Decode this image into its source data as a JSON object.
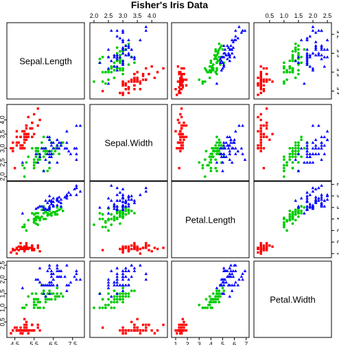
{
  "chart_data": {
    "type": "scatter",
    "subtype": "scatterplot-matrix",
    "title": "Fisher's Iris Data",
    "variables": [
      "Sepal.Length",
      "Sepal.Width",
      "Petal.Length",
      "Petal.Width"
    ],
    "ranges": {
      "Sepal.Length": [
        4.3,
        7.9
      ],
      "Sepal.Width": [
        2.0,
        4.4
      ],
      "Petal.Length": [
        1.0,
        6.9
      ],
      "Petal.Width": [
        0.1,
        2.5
      ]
    },
    "ticks": {
      "Sepal.Length": [
        4.5,
        5.5,
        6.5,
        7.5
      ],
      "Sepal.Width": [
        2.0,
        2.5,
        3.0,
        3.5,
        4.0
      ],
      "Petal.Length": [
        1,
        2,
        3,
        4,
        5,
        6,
        7
      ],
      "Petal.Width": [
        0.5,
        1.0,
        1.5,
        2.0,
        2.5
      ]
    },
    "tick_labels": {
      "Sepal.Length": [
        "4.5",
        "5.5",
        "6.5",
        "7.5"
      ],
      "Sepal.Width": [
        "2.0",
        "2.5",
        "3.0",
        "3.5",
        "4.0"
      ],
      "Petal.Length": [
        "1",
        "2",
        "3",
        "4",
        "5",
        "6",
        "7"
      ],
      "Petal.Width": [
        "0.5",
        "1.0",
        "1.5",
        "2.0",
        "2.5"
      ]
    },
    "axis_sides": {
      "top": [
        "",
        "Sepal.Width",
        "",
        "Petal.Width"
      ],
      "bottom": [
        "Sepal.Length",
        "",
        "Petal.Length",
        ""
      ],
      "left": [
        "",
        "Sepal.Width",
        "",
        "Petal.Width"
      ],
      "right": [
        "Sepal.Length",
        "",
        "Petal.Length",
        ""
      ]
    },
    "grid": false,
    "series": [
      {
        "color": "#ff0000",
        "marker": "square",
        "points": [
          [
            5.1,
            3.5,
            1.4,
            0.2
          ],
          [
            4.9,
            3.0,
            1.4,
            0.2
          ],
          [
            4.7,
            3.2,
            1.3,
            0.2
          ],
          [
            4.6,
            3.1,
            1.5,
            0.2
          ],
          [
            5.0,
            3.6,
            1.4,
            0.2
          ],
          [
            5.4,
            3.9,
            1.7,
            0.4
          ],
          [
            4.6,
            3.4,
            1.4,
            0.3
          ],
          [
            5.0,
            3.4,
            1.5,
            0.2
          ],
          [
            4.4,
            2.9,
            1.4,
            0.2
          ],
          [
            4.9,
            3.1,
            1.5,
            0.1
          ],
          [
            5.4,
            3.7,
            1.5,
            0.2
          ],
          [
            4.8,
            3.4,
            1.6,
            0.2
          ],
          [
            4.8,
            3.0,
            1.4,
            0.1
          ],
          [
            4.3,
            3.0,
            1.1,
            0.1
          ],
          [
            5.8,
            4.0,
            1.2,
            0.2
          ],
          [
            5.7,
            4.4,
            1.5,
            0.4
          ],
          [
            5.4,
            3.9,
            1.3,
            0.4
          ],
          [
            5.1,
            3.5,
            1.4,
            0.3
          ],
          [
            5.7,
            3.8,
            1.7,
            0.3
          ],
          [
            5.1,
            3.8,
            1.5,
            0.3
          ],
          [
            5.4,
            3.4,
            1.7,
            0.2
          ],
          [
            5.1,
            3.7,
            1.5,
            0.4
          ],
          [
            4.6,
            3.6,
            1.0,
            0.2
          ],
          [
            5.1,
            3.3,
            1.7,
            0.5
          ],
          [
            4.8,
            3.4,
            1.9,
            0.2
          ],
          [
            5.0,
            3.0,
            1.6,
            0.2
          ],
          [
            5.0,
            3.4,
            1.6,
            0.4
          ],
          [
            5.2,
            3.5,
            1.5,
            0.2
          ],
          [
            5.2,
            3.4,
            1.4,
            0.2
          ],
          [
            4.7,
            3.2,
            1.6,
            0.2
          ],
          [
            4.8,
            3.1,
            1.6,
            0.2
          ],
          [
            5.4,
            3.4,
            1.5,
            0.4
          ],
          [
            5.2,
            4.1,
            1.5,
            0.1
          ],
          [
            5.5,
            4.2,
            1.4,
            0.2
          ],
          [
            4.9,
            3.1,
            1.5,
            0.2
          ],
          [
            5.0,
            3.2,
            1.2,
            0.2
          ],
          [
            5.5,
            3.5,
            1.3,
            0.2
          ],
          [
            4.9,
            3.6,
            1.4,
            0.1
          ],
          [
            4.4,
            3.0,
            1.3,
            0.2
          ],
          [
            5.1,
            3.4,
            1.5,
            0.2
          ],
          [
            5.0,
            3.5,
            1.3,
            0.3
          ],
          [
            4.5,
            2.3,
            1.3,
            0.3
          ],
          [
            4.4,
            3.2,
            1.3,
            0.2
          ],
          [
            5.0,
            3.5,
            1.6,
            0.6
          ],
          [
            5.1,
            3.8,
            1.9,
            0.4
          ],
          [
            4.8,
            3.0,
            1.4,
            0.3
          ],
          [
            5.1,
            3.8,
            1.6,
            0.2
          ],
          [
            4.6,
            3.2,
            1.4,
            0.2
          ],
          [
            5.3,
            3.7,
            1.5,
            0.2
          ],
          [
            5.0,
            3.3,
            1.4,
            0.2
          ]
        ]
      },
      {
        "color": "#00cc00",
        "marker": "circle",
        "points": [
          [
            7.0,
            3.2,
            4.7,
            1.4
          ],
          [
            6.4,
            3.2,
            4.5,
            1.5
          ],
          [
            6.9,
            3.1,
            4.9,
            1.5
          ],
          [
            5.5,
            2.3,
            4.0,
            1.3
          ],
          [
            6.5,
            2.8,
            4.6,
            1.5
          ],
          [
            5.7,
            2.8,
            4.5,
            1.3
          ],
          [
            6.3,
            3.3,
            4.7,
            1.6
          ],
          [
            4.9,
            2.4,
            3.3,
            1.0
          ],
          [
            6.6,
            2.9,
            4.6,
            1.3
          ],
          [
            5.2,
            2.7,
            3.9,
            1.4
          ],
          [
            5.0,
            2.0,
            3.5,
            1.0
          ],
          [
            5.9,
            3.0,
            4.2,
            1.5
          ],
          [
            6.0,
            2.2,
            4.0,
            1.0
          ],
          [
            6.1,
            2.9,
            4.7,
            1.4
          ],
          [
            5.6,
            2.9,
            3.6,
            1.3
          ],
          [
            6.7,
            3.1,
            4.4,
            1.4
          ],
          [
            5.6,
            3.0,
            4.5,
            1.5
          ],
          [
            5.8,
            2.7,
            4.1,
            1.0
          ],
          [
            6.2,
            2.2,
            4.5,
            1.5
          ],
          [
            5.6,
            2.5,
            3.9,
            1.1
          ],
          [
            5.9,
            3.2,
            4.8,
            1.8
          ],
          [
            6.1,
            2.8,
            4.0,
            1.3
          ],
          [
            6.3,
            2.5,
            4.9,
            1.5
          ],
          [
            6.1,
            2.8,
            4.7,
            1.2
          ],
          [
            6.4,
            2.9,
            4.3,
            1.3
          ],
          [
            6.6,
            3.0,
            4.4,
            1.4
          ],
          [
            6.8,
            2.8,
            4.8,
            1.4
          ],
          [
            6.7,
            3.0,
            5.0,
            1.7
          ],
          [
            6.0,
            2.9,
            4.5,
            1.5
          ],
          [
            5.7,
            2.6,
            3.5,
            1.0
          ],
          [
            5.5,
            2.4,
            3.8,
            1.1
          ],
          [
            5.5,
            2.4,
            3.7,
            1.0
          ],
          [
            5.8,
            2.7,
            3.9,
            1.2
          ],
          [
            6.0,
            2.7,
            5.1,
            1.6
          ],
          [
            5.4,
            3.0,
            4.5,
            1.5
          ],
          [
            6.0,
            3.4,
            4.5,
            1.6
          ],
          [
            6.7,
            3.1,
            4.7,
            1.5
          ],
          [
            6.3,
            2.3,
            4.4,
            1.3
          ],
          [
            5.6,
            3.0,
            4.1,
            1.3
          ],
          [
            5.5,
            2.5,
            4.0,
            1.3
          ],
          [
            5.5,
            2.6,
            4.4,
            1.2
          ],
          [
            6.1,
            3.0,
            4.6,
            1.4
          ],
          [
            5.8,
            2.6,
            4.0,
            1.2
          ],
          [
            5.0,
            2.3,
            3.3,
            1.0
          ],
          [
            5.6,
            2.7,
            4.2,
            1.3
          ],
          [
            5.7,
            3.0,
            4.2,
            1.2
          ],
          [
            5.7,
            2.9,
            4.2,
            1.3
          ],
          [
            6.2,
            2.9,
            4.3,
            1.3
          ],
          [
            5.1,
            2.5,
            3.0,
            1.1
          ],
          [
            5.7,
            2.8,
            4.1,
            1.3
          ]
        ]
      },
      {
        "color": "#0000ff",
        "marker": "triangle",
        "points": [
          [
            6.3,
            3.3,
            6.0,
            2.5
          ],
          [
            5.8,
            2.7,
            5.1,
            1.9
          ],
          [
            7.1,
            3.0,
            5.9,
            2.1
          ],
          [
            6.3,
            2.9,
            5.6,
            1.8
          ],
          [
            6.5,
            3.0,
            5.8,
            2.2
          ],
          [
            7.6,
            3.0,
            6.6,
            2.1
          ],
          [
            4.9,
            2.5,
            4.5,
            1.7
          ],
          [
            7.3,
            2.9,
            6.3,
            1.8
          ],
          [
            6.7,
            2.5,
            5.8,
            1.8
          ],
          [
            7.2,
            3.6,
            6.1,
            2.5
          ],
          [
            6.5,
            3.2,
            5.1,
            2.0
          ],
          [
            6.4,
            2.7,
            5.3,
            1.9
          ],
          [
            6.8,
            3.0,
            5.5,
            2.1
          ],
          [
            5.7,
            2.5,
            5.0,
            2.0
          ],
          [
            5.8,
            2.8,
            5.1,
            2.4
          ],
          [
            6.4,
            3.2,
            5.3,
            2.3
          ],
          [
            6.5,
            3.0,
            5.5,
            1.8
          ],
          [
            7.7,
            3.8,
            6.7,
            2.2
          ],
          [
            7.7,
            2.6,
            6.9,
            2.3
          ],
          [
            6.0,
            2.2,
            5.0,
            1.5
          ],
          [
            6.9,
            3.2,
            5.7,
            2.3
          ],
          [
            5.6,
            2.8,
            4.9,
            2.0
          ],
          [
            7.7,
            2.8,
            6.7,
            2.0
          ],
          [
            6.3,
            2.7,
            4.9,
            1.8
          ],
          [
            6.7,
            3.3,
            5.7,
            2.1
          ],
          [
            7.2,
            3.2,
            6.0,
            1.8
          ],
          [
            6.2,
            2.8,
            4.8,
            1.8
          ],
          [
            6.1,
            3.0,
            4.9,
            1.8
          ],
          [
            6.4,
            2.8,
            5.6,
            2.1
          ],
          [
            7.2,
            3.0,
            5.8,
            1.6
          ],
          [
            7.4,
            2.8,
            6.1,
            1.9
          ],
          [
            7.9,
            3.8,
            6.4,
            2.0
          ],
          [
            6.4,
            2.8,
            5.6,
            2.2
          ],
          [
            6.3,
            2.8,
            5.1,
            1.5
          ],
          [
            6.1,
            2.6,
            5.6,
            1.4
          ],
          [
            7.7,
            3.0,
            6.1,
            2.3
          ],
          [
            6.3,
            3.4,
            5.6,
            2.4
          ],
          [
            6.4,
            3.1,
            5.5,
            1.8
          ],
          [
            6.0,
            3.0,
            4.8,
            1.8
          ],
          [
            6.9,
            3.1,
            5.4,
            2.1
          ],
          [
            6.7,
            3.1,
            5.6,
            2.4
          ],
          [
            6.9,
            3.1,
            5.1,
            2.3
          ],
          [
            5.8,
            2.7,
            5.1,
            1.9
          ],
          [
            6.8,
            3.2,
            5.9,
            2.3
          ],
          [
            6.7,
            3.3,
            5.7,
            2.5
          ],
          [
            6.7,
            3.0,
            5.2,
            2.3
          ],
          [
            6.3,
            2.5,
            5.0,
            1.9
          ],
          [
            6.5,
            3.0,
            5.2,
            2.0
          ],
          [
            6.2,
            3.4,
            5.4,
            2.3
          ],
          [
            5.9,
            3.0,
            5.1,
            1.8
          ]
        ]
      }
    ]
  }
}
